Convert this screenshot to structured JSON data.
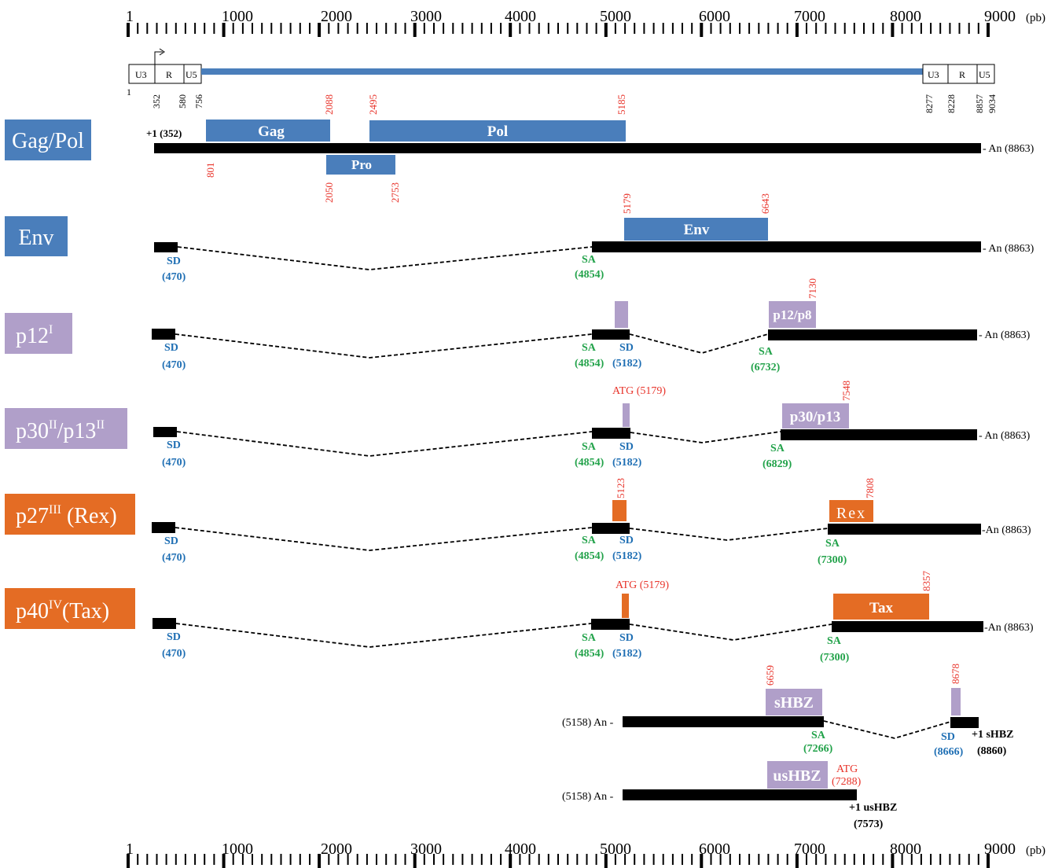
{
  "ruler": {
    "top_ticks": [
      "1",
      "1000",
      "2000",
      "3000",
      "4000",
      "5000",
      "6000",
      "7000",
      "8000",
      "9000"
    ],
    "unit": "(pb)"
  },
  "provirus": {
    "ltr5": [
      "U3",
      "R",
      "U5"
    ],
    "ltr3": [
      "U3",
      "R",
      "U5"
    ],
    "positions_5": [
      "1",
      "352",
      "580",
      "756"
    ],
    "positions_3": [
      "8277",
      "8228",
      "8857",
      "9034"
    ]
  },
  "colors": {
    "blue": "#4a7ebb",
    "purple": "#b09fc9",
    "orange": "#e46c24",
    "red_text": "#e8332a",
    "green_text": "#22a24a",
    "sd_text": "#1f6fb4"
  },
  "transcripts": {
    "gagpol": {
      "label": "Gag/Pol",
      "start": "+1 (352)",
      "polya": "- An (8863)",
      "gag": "Gag",
      "pol": "Pol",
      "pro": "Pro",
      "n2088": "2088",
      "n2495": "2495",
      "n5185": "5185",
      "n801": "801",
      "n2050": "2050",
      "n2753": "2753"
    },
    "env": {
      "label": "Env",
      "orf": "Env",
      "n5179": "5179",
      "n6643": "6643",
      "sd": "SD",
      "sd_pos": "(470)",
      "sa": "SA",
      "sa_pos": "(4854)",
      "polya": "- An (8863)"
    },
    "p12": {
      "label_main": "p12",
      "label_sup": "I",
      "orf": "p12/p8",
      "n7130": "7130",
      "sd1": "SD",
      "sd1_pos": "(470)",
      "sa1": "SA",
      "sa1_pos": "(4854)",
      "sd2": "SD",
      "sd2_pos": "(5182)",
      "sa2": "SA",
      "sa2_pos": "(6732)",
      "polya": "- An (8863)"
    },
    "p30": {
      "label_a": "p30",
      "label_a_sup": "II",
      "label_b": "/p13",
      "label_b_sup": "II",
      "orf": "p30/p13",
      "atg": "ATG (5179)",
      "n7548": "7548",
      "sd1": "SD",
      "sd1_pos": "(470)",
      "sa1": "SA",
      "sa1_pos": "(4854)",
      "sd2": "SD",
      "sd2_pos": "(5182)",
      "sa2": "SA",
      "sa2_pos": "(6829)",
      "polya": "- An (8863)"
    },
    "rex": {
      "label_a": "p27",
      "label_sup": "III",
      "label_b": " (Rex)",
      "orf": "Rex",
      "n5123": "5123",
      "n7808": "7808",
      "sd1": "SD",
      "sd1_pos": "(470)",
      "sa1": "SA",
      "sa1_pos": "(4854)",
      "sd2": "SD",
      "sd2_pos": "(5182)",
      "sa2": "SA",
      "sa2_pos": "(7300)",
      "polya": "-An (8863)"
    },
    "tax": {
      "label_a": "p40",
      "label_sup": "IV",
      "label_b": "(Tax)",
      "orf": "Tax",
      "atg": "ATG (5179)",
      "n8357": "8357",
      "sd1": "SD",
      "sd1_pos": "(470)",
      "sa1": "SA",
      "sa1_pos": "(4854)",
      "sd2": "SD",
      "sd2_pos": "(5182)",
      "sa2": "SA",
      "sa2_pos": "(7300)",
      "polya": "-An (8863)"
    },
    "shbz": {
      "orf": "sHBZ",
      "n6659": "6659",
      "n8678": "8678",
      "polya": "(5158) An -",
      "sa": "SA",
      "sa_pos": "(7266)",
      "sd": "SD",
      "sd_pos": "(8666)",
      "start": "+1 sHBZ",
      "start_pos": "(8860)"
    },
    "ushbz": {
      "orf": "usHBZ",
      "atg": "ATG",
      "atg_pos": "(7288)",
      "polya": "(5158) An -",
      "start": "+1 usHBZ",
      "start_pos": "(7573)"
    }
  }
}
